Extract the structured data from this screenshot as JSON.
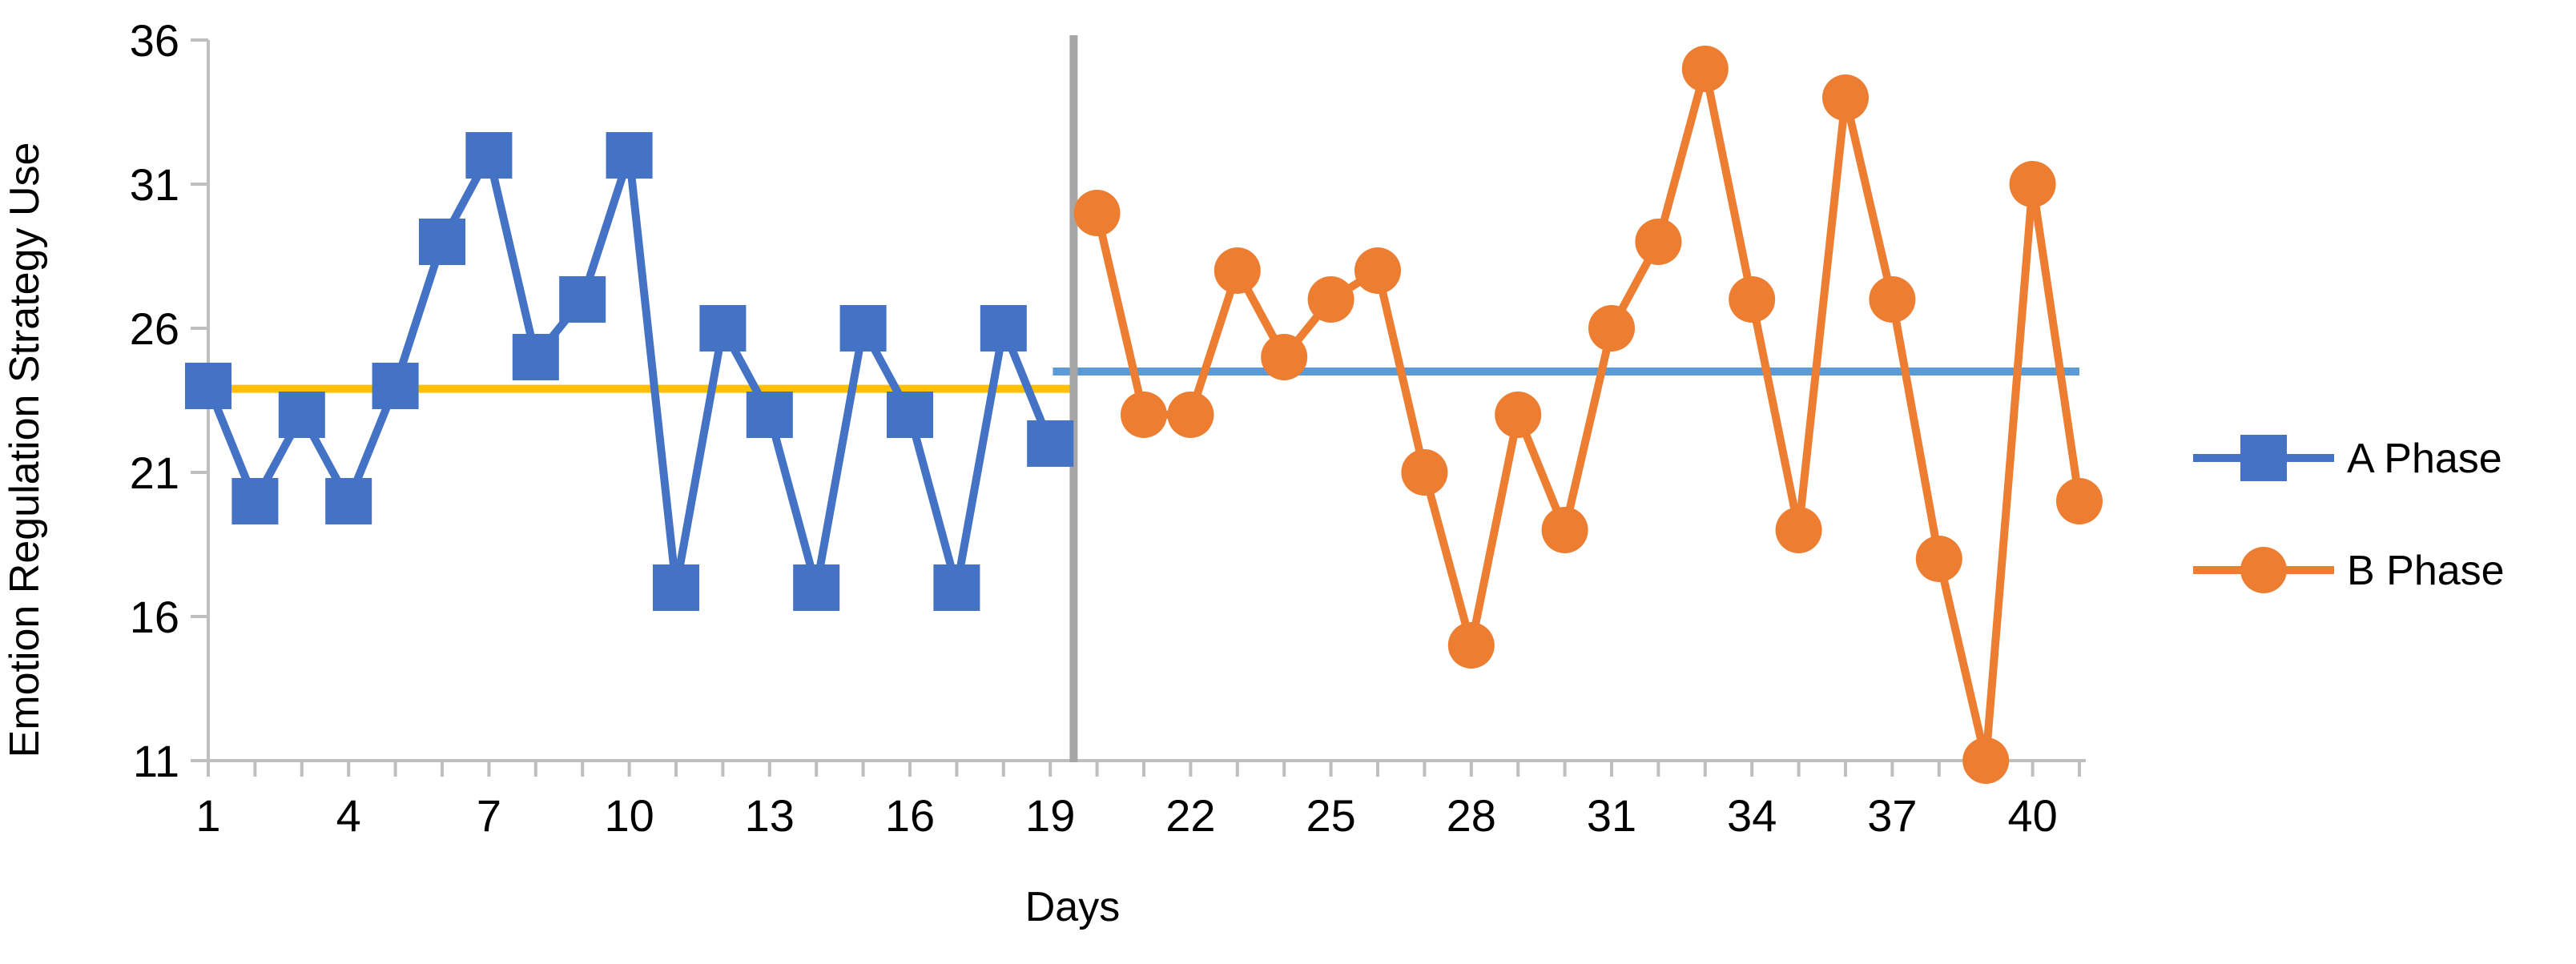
{
  "chart_data": {
    "type": "line",
    "title": "",
    "xlabel": "Days",
    "ylabel": "Emotion Regulation Strategy Use",
    "xlim": [
      1,
      41
    ],
    "ylim": [
      11,
      36
    ],
    "x_ticks": [
      1,
      4,
      7,
      10,
      13,
      16,
      19,
      22,
      25,
      28,
      31,
      34,
      37,
      40
    ],
    "y_ticks": [
      11,
      16,
      21,
      26,
      31,
      36
    ],
    "grid": false,
    "legend_position": "right",
    "phase_change_x": 19.5,
    "phase_change_color": "#a6a6a6",
    "series": [
      {
        "name": "A Phase",
        "marker": "square",
        "color": "#4472c4",
        "x": [
          1,
          2,
          3,
          4,
          5,
          6,
          7,
          8,
          9,
          10,
          11,
          12,
          13,
          14,
          15,
          16,
          17,
          18,
          19
        ],
        "values": [
          24,
          20,
          23,
          20,
          24,
          29,
          32,
          25,
          27,
          32,
          17,
          26,
          23,
          17,
          26,
          23,
          17,
          26,
          22
        ]
      },
      {
        "name": "B Phase",
        "marker": "circle",
        "color": "#ed7d31",
        "x": [
          20,
          21,
          22,
          23,
          24,
          25,
          26,
          27,
          28,
          29,
          30,
          31,
          32,
          33,
          34,
          35,
          36,
          37,
          38,
          39,
          40,
          41
        ],
        "values": [
          30,
          23,
          23,
          28,
          25,
          27,
          28,
          21,
          15,
          23,
          19,
          26,
          29,
          35,
          27,
          19,
          34,
          27,
          18,
          11,
          31,
          20
        ]
      }
    ],
    "mean_lines": [
      {
        "phase": "A Phase",
        "value": 23.9,
        "x_range": [
          1,
          19.5
        ],
        "color": "#ffc000"
      },
      {
        "phase": "B Phase",
        "value": 24.5,
        "x_range": [
          19.5,
          41
        ],
        "color": "#5b9bd5"
      }
    ]
  }
}
